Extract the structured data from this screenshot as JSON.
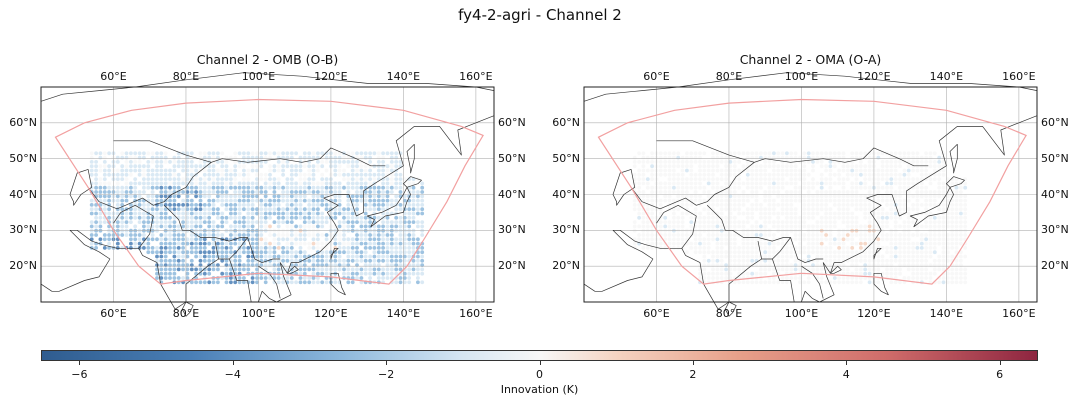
{
  "figure": {
    "suptitle": "fy4-2-agri - Channel 2"
  },
  "panels": [
    {
      "id": "left",
      "title": "Channel 2 - OMB (O-B)",
      "xticks": [
        "60°E",
        "80°E",
        "100°E",
        "120°E",
        "140°E",
        "160°E"
      ],
      "yticks": [
        "60°N",
        "50°N",
        "40°N",
        "30°N",
        "20°N"
      ],
      "field": "omb"
    },
    {
      "id": "right",
      "title": "Channel 2 - OMA (O-A)",
      "xticks": [
        "60°E",
        "80°E",
        "100°E",
        "120°E",
        "140°E",
        "160°E"
      ],
      "yticks": [
        "60°N",
        "50°N",
        "40°N",
        "30°N",
        "20°N"
      ],
      "field": "oma"
    }
  ],
  "colorbar": {
    "label": "Innovation (K)",
    "ticks": [
      "−6",
      "−4",
      "−2",
      "0",
      "2",
      "4",
      "6"
    ],
    "range": [
      -6.5,
      6.5
    ],
    "cmap": [
      "#2f5c8f",
      "#4a7fb6",
      "#8db8dc",
      "#d4e5f2",
      "#f7f7f7",
      "#f5d2c0",
      "#e7a08a",
      "#cf6c6a",
      "#8e2540"
    ]
  },
  "map_extent": {
    "lon": [
      40,
      165
    ],
    "lat": [
      10,
      70
    ]
  },
  "colors": {
    "domain_outline": "#f2a0a0",
    "grid": "#b0b0b0",
    "coast": "#333333"
  }
}
